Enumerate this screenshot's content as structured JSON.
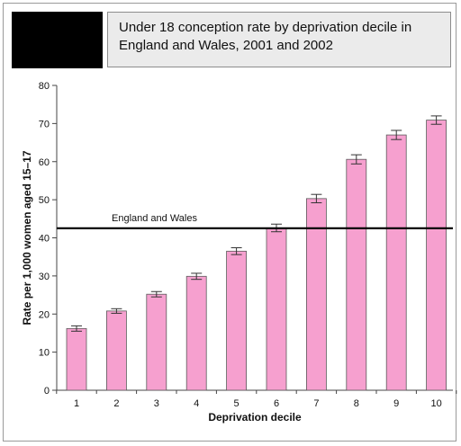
{
  "title_lines": [
    "Under 18 conception rate by deprivation decile in",
    "England and Wales, 2001 and 2002"
  ],
  "chart_data": {
    "type": "bar",
    "title": "Under 18 conception rate by deprivation decile in England and Wales, 2001 and 2002",
    "xlabel": "Deprivation decile",
    "ylabel": "Rate per 1,000 women aged 15–17",
    "categories": [
      "1",
      "2",
      "3",
      "4",
      "5",
      "6",
      "7",
      "8",
      "9",
      "10"
    ],
    "values": [
      16.2,
      20.8,
      25.2,
      29.9,
      36.5,
      42.6,
      50.3,
      60.6,
      67.0,
      70.9
    ],
    "error": [
      0.7,
      0.6,
      0.7,
      0.8,
      0.9,
      1.0,
      1.1,
      1.2,
      1.2,
      1.1
    ],
    "ylim": [
      0,
      80
    ],
    "yticks": [
      0,
      10,
      20,
      30,
      40,
      50,
      60,
      70,
      80
    ],
    "grid": false,
    "reference_line": {
      "label": "England and Wales",
      "value": 42.5
    },
    "colors": {
      "bar_fill": "#f6a0cf",
      "bar_stroke": "#5a5a5a",
      "axis": "#444444",
      "reference": "#000000"
    }
  }
}
